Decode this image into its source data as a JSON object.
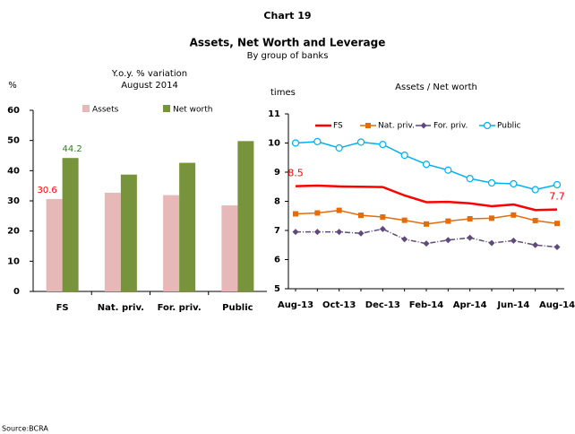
{
  "header": {
    "label": "Chart 19",
    "title": "Assets, Net Worth and Leverage",
    "subtitle": "By group of banks"
  },
  "source": "Source:BCRA",
  "chart_data": [
    {
      "type": "bar",
      "title": "Y.o.y. % variation",
      "subtitle": "August 2014",
      "y_label": "%",
      "categories": [
        "FS",
        "Nat. priv.",
        "For. priv.",
        "Public"
      ],
      "series": [
        {
          "name": "Assets",
          "color": "#e6b8b7",
          "label_color": "#ff0000",
          "values": [
            30.6,
            32.7,
            31.9,
            28.5
          ],
          "value_labels": [
            "30.6",
            null,
            null,
            null
          ]
        },
        {
          "name": "Net worth",
          "color": "#77933c",
          "label_color": "#2e7d1e",
          "values": [
            44.2,
            38.7,
            42.6,
            49.8
          ],
          "value_labels": [
            "44.2",
            null,
            null,
            null
          ]
        }
      ],
      "ylim": [
        0,
        60
      ],
      "yticks": [
        0,
        10,
        20,
        30,
        40,
        50,
        60
      ],
      "legend": "top"
    },
    {
      "type": "line",
      "title": "Assets / Net worth",
      "y_label": "times",
      "categories": [
        "Aug-13",
        null,
        "Oct-13",
        null,
        "Dec-13",
        null,
        "Feb-14",
        null,
        "Apr-14",
        null,
        "Jun-14",
        null,
        "Aug-14"
      ],
      "series": [
        {
          "name": "FS",
          "color": "#ff0000",
          "marker": "none",
          "dash": "solid",
          "values": [
            8.52,
            8.54,
            8.51,
            8.5,
            8.49,
            8.2,
            7.97,
            7.98,
            7.93,
            7.83,
            7.89,
            7.7,
            7.72
          ],
          "value_labels": [
            "8.5",
            null,
            null,
            null,
            null,
            null,
            null,
            null,
            null,
            null,
            null,
            null,
            "7.7"
          ]
        },
        {
          "name": "Nat. priv.",
          "color": "#e46c0a",
          "marker": "square",
          "dash": "solid",
          "values": [
            7.57,
            7.6,
            7.69,
            7.52,
            7.46,
            7.35,
            7.22,
            7.32,
            7.4,
            7.42,
            7.53,
            7.34,
            7.24
          ]
        },
        {
          "name": "For. priv.",
          "color": "#604a7b",
          "marker": "diamond",
          "dash": "dashdot",
          "values": [
            6.95,
            6.95,
            6.95,
            6.9,
            7.05,
            6.7,
            6.55,
            6.67,
            6.75,
            6.57,
            6.65,
            6.5,
            6.43
          ]
        },
        {
          "name": "Public",
          "color": "#00b0f0",
          "marker": "circle",
          "dash": "solid",
          "values": [
            10.0,
            10.05,
            9.83,
            10.03,
            9.95,
            9.58,
            9.27,
            9.07,
            8.78,
            8.63,
            8.6,
            8.4,
            8.57
          ]
        }
      ],
      "ylim": [
        5,
        11
      ],
      "yticks": [
        5,
        6,
        7,
        8,
        9,
        10,
        11
      ],
      "legend": "top"
    }
  ]
}
